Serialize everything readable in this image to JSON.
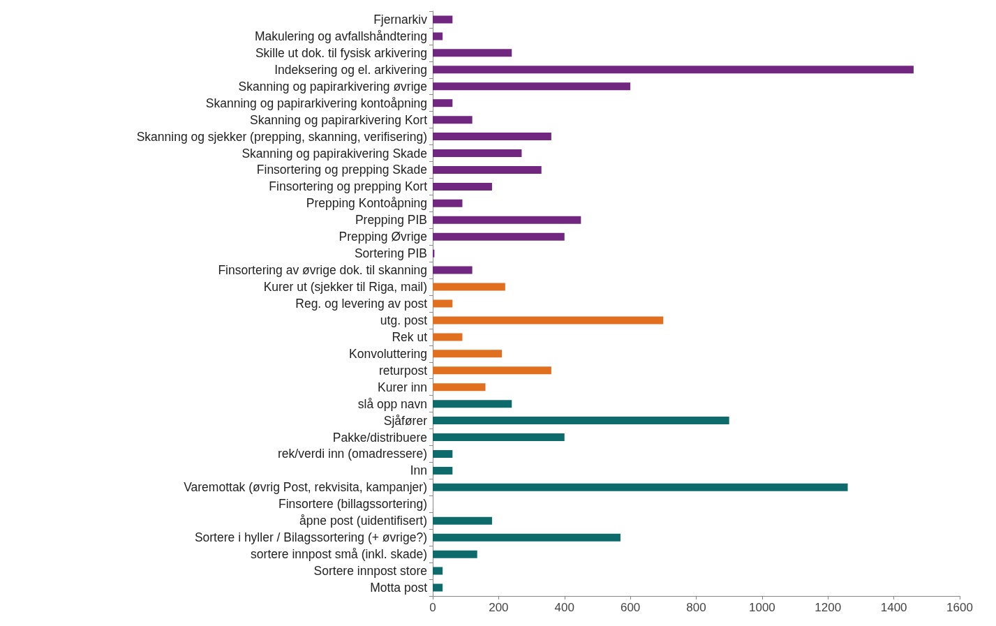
{
  "chart_data": {
    "type": "bar",
    "orientation": "horizontal",
    "categories": [
      "Fjernarkiv",
      "Makulering og avfallshåndtering",
      "Skille ut dok. til fysisk arkivering",
      "Indeksering og el. arkivering",
      "Skanning og papirarkivering øvrige",
      "Skanning og papirarkivering kontoåpning",
      "Skanning og papirarkivering Kort",
      "Skanning og sjekker (prepping, skanning, verifisering)",
      "Skanning og papirakivering Skade",
      "Finsortering og prepping Skade",
      "Finsortering og prepping Kort",
      "Prepping Kontoåpning",
      "Prepping PIB",
      "Prepping Øvrige",
      "Sortering PIB",
      "Finsortering av øvrige dok. til skanning",
      "Kurer ut (sjekker til Riga, mail)",
      "Reg. og levering av post",
      "utg. post",
      "Rek ut",
      "Konvoluttering",
      "returpost",
      "Kurer inn",
      "slå opp navn",
      "Sjåfører",
      "Pakke/distribuere",
      "rek/verdi inn (omadressere)",
      "Inn",
      "Varemottak (øvrig Post, rekvisita, kampanjer)",
      "Finsortere (billagssortering)",
      "åpne post (uidentifisert)",
      "Sortere i hyller / Bilagssortering (+ øvrige?)",
      "sortere innpost små (inkl. skade)",
      "Sortere innpost store",
      "Motta post"
    ],
    "values": [
      60,
      30,
      240,
      1460,
      600,
      60,
      120,
      360,
      270,
      330,
      180,
      90,
      450,
      400,
      5,
      120,
      220,
      60,
      700,
      90,
      210,
      360,
      160,
      240,
      900,
      400,
      60,
      60,
      1260,
      0,
      180,
      570,
      135,
      30,
      30
    ],
    "colors": [
      "#71267f",
      "#71267f",
      "#71267f",
      "#71267f",
      "#71267f",
      "#71267f",
      "#71267f",
      "#71267f",
      "#71267f",
      "#71267f",
      "#71267f",
      "#71267f",
      "#71267f",
      "#71267f",
      "#71267f",
      "#71267f",
      "#e07020",
      "#e07020",
      "#e07020",
      "#e07020",
      "#e07020",
      "#e07020",
      "#e07020",
      "#0e6b6b",
      "#0e6b6b",
      "#0e6b6b",
      "#0e6b6b",
      "#0e6b6b",
      "#0e6b6b",
      "#0e6b6b",
      "#0e6b6b",
      "#0e6b6b",
      "#0e6b6b",
      "#0e6b6b",
      "#0e6b6b"
    ],
    "xlim": [
      0,
      1600
    ],
    "xticks": [
      0,
      200,
      400,
      600,
      800,
      1000,
      1200,
      1400,
      1600
    ],
    "grid": false
  }
}
